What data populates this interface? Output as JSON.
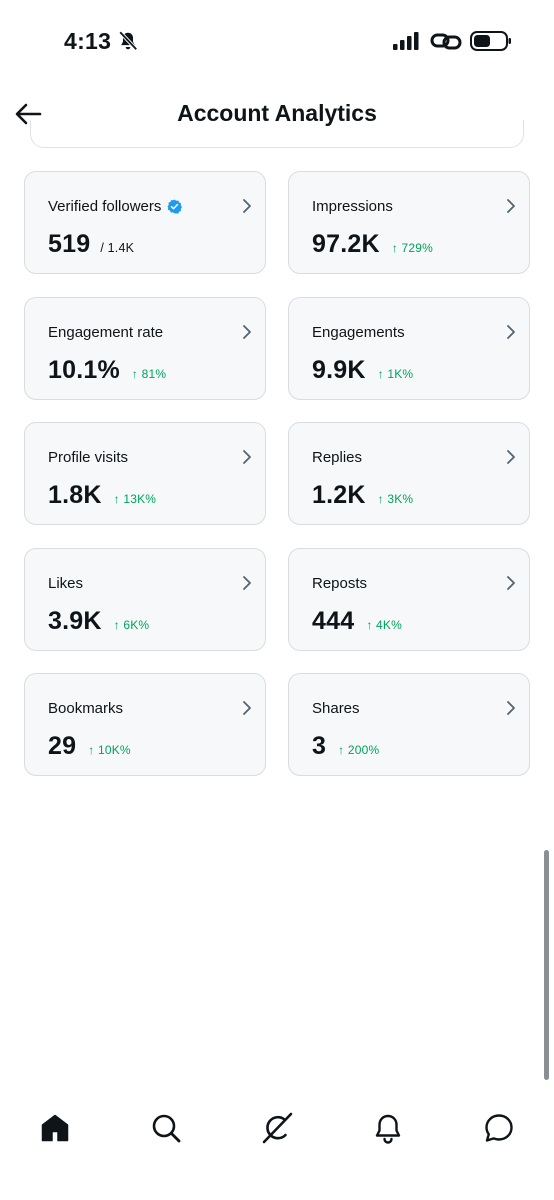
{
  "status_bar": {
    "time": "4:13"
  },
  "header": {
    "title": "Account Analytics"
  },
  "cards": [
    {
      "label": "Verified followers",
      "value": "519",
      "sub": "/ 1.4K",
      "change": "",
      "verified": true
    },
    {
      "label": "Impressions",
      "value": "97.2K",
      "sub": "",
      "change": "↑ 729%"
    },
    {
      "label": "Engagement rate",
      "value": "10.1%",
      "sub": "",
      "change": "↑ 81%"
    },
    {
      "label": "Engagements",
      "value": "9.9K",
      "sub": "",
      "change": "↑ 1K%"
    },
    {
      "label": "Profile visits",
      "value": "1.8K",
      "sub": "",
      "change": "↑ 13K%"
    },
    {
      "label": "Replies",
      "value": "1.2K",
      "sub": "",
      "change": "↑ 3K%"
    },
    {
      "label": "Likes",
      "value": "3.9K",
      "sub": "",
      "change": "↑ 6K%"
    },
    {
      "label": "Reposts",
      "value": "444",
      "sub": "",
      "change": "↑ 4K%"
    },
    {
      "label": "Bookmarks",
      "value": "29",
      "sub": "",
      "change": "↑ 10K%"
    },
    {
      "label": "Shares",
      "value": "3",
      "sub": "",
      "change": "↑ 200%"
    }
  ],
  "colors": {
    "positive": "#00a35a",
    "verified": "#1d9bf0",
    "card_bg": "#f6f8f9",
    "card_border": "#d8dde1"
  },
  "bottom_nav": {
    "items": [
      "home-icon",
      "search-icon",
      "grok-icon",
      "notifications-icon",
      "messages-icon"
    ],
    "active": "home-icon"
  }
}
